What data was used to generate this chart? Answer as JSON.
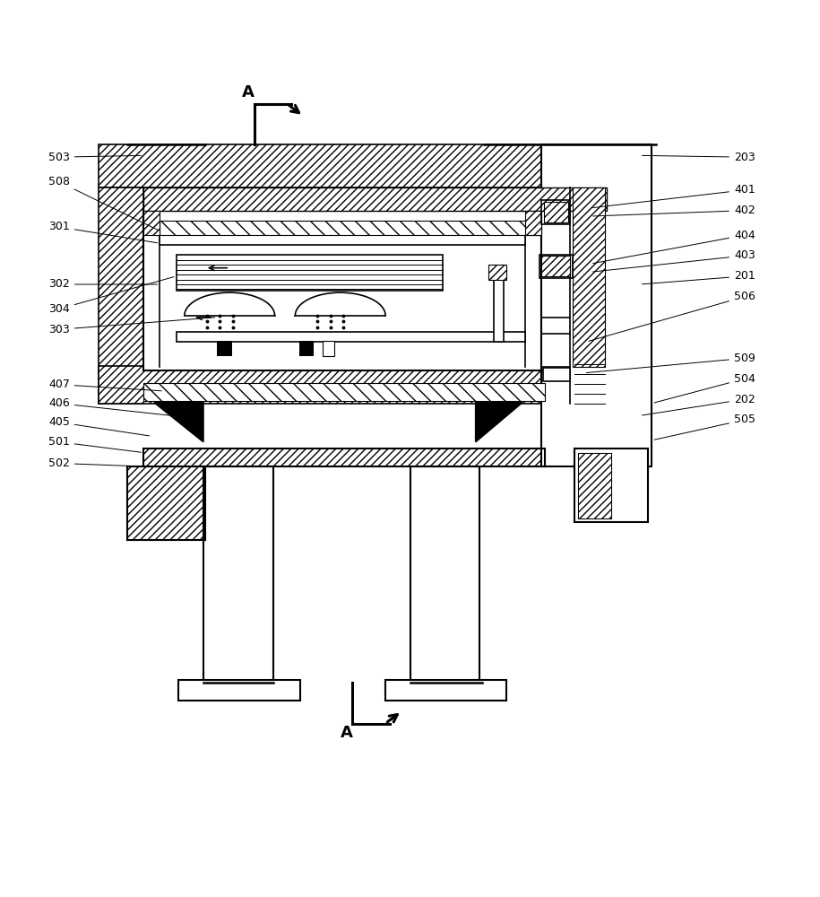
{
  "bg_color": "#ffffff",
  "line_color": "#000000",
  "hatch_color": "#000000",
  "hatch_pattern": "////",
  "title": "",
  "labels_left": {
    "503": [
      0.085,
      0.855,
      0.175,
      0.857
    ],
    "508": [
      0.085,
      0.825,
      0.195,
      0.765
    ],
    "301": [
      0.085,
      0.77,
      0.195,
      0.75
    ],
    "302": [
      0.085,
      0.7,
      0.195,
      0.7
    ],
    "304": [
      0.085,
      0.67,
      0.215,
      0.71
    ],
    "303": [
      0.085,
      0.645,
      0.265,
      0.66
    ],
    "407": [
      0.085,
      0.578,
      0.2,
      0.57
    ],
    "406": [
      0.085,
      0.555,
      0.21,
      0.54
    ],
    "405": [
      0.085,
      0.532,
      0.185,
      0.515
    ],
    "501": [
      0.085,
      0.508,
      0.175,
      0.495
    ],
    "502": [
      0.085,
      0.482,
      0.178,
      0.478
    ]
  },
  "labels_right": {
    "203": [
      0.895,
      0.855,
      0.78,
      0.857
    ],
    "401": [
      0.895,
      0.815,
      0.72,
      0.793
    ],
    "402": [
      0.895,
      0.79,
      0.72,
      0.783
    ],
    "404": [
      0.895,
      0.76,
      0.72,
      0.725
    ],
    "403": [
      0.895,
      0.735,
      0.72,
      0.715
    ],
    "201": [
      0.895,
      0.71,
      0.78,
      0.7
    ],
    "506": [
      0.895,
      0.685,
      0.715,
      0.63
    ],
    "509": [
      0.895,
      0.61,
      0.712,
      0.592
    ],
    "504": [
      0.895,
      0.585,
      0.795,
      0.555
    ],
    "202": [
      0.895,
      0.56,
      0.78,
      0.54
    ],
    "505": [
      0.895,
      0.535,
      0.795,
      0.51
    ]
  }
}
